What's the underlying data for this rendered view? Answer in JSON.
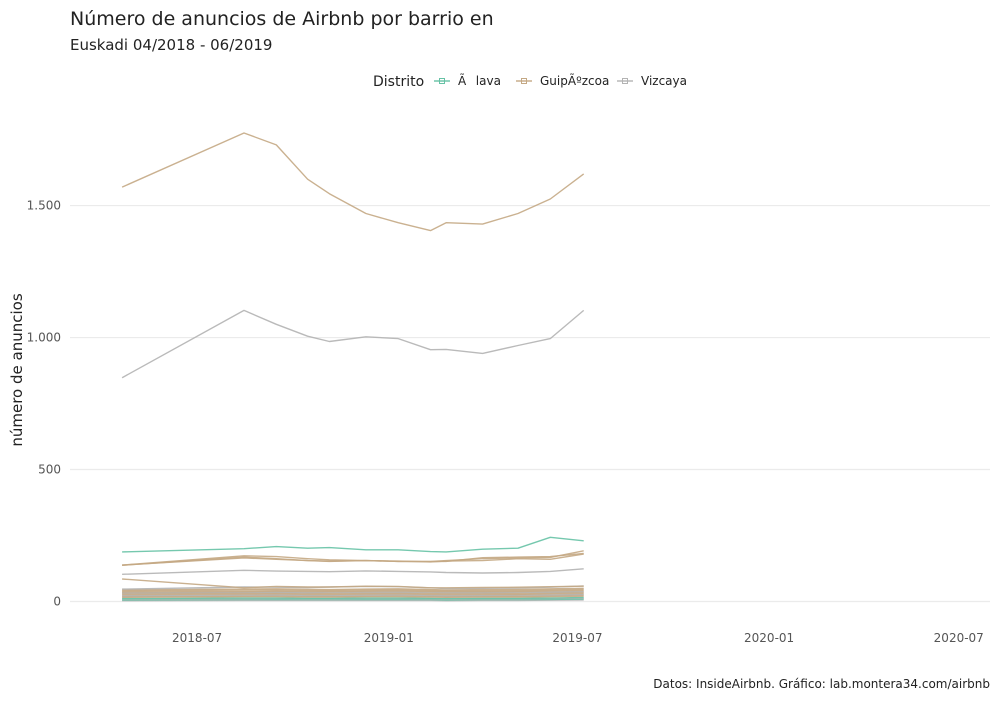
{
  "title": "Número de anuncios de Airbnb por barrio en",
  "subtitle": "Euskadi 04/2018 - 06/2019",
  "caption": "Datos: InsideAirbnb. Gráfico: lab.montera34.com/airbnb",
  "colors": {
    "alava": "#66c2a5",
    "gipuzkoa": "#c4a884",
    "vizcaya": "#b3b3b3",
    "grid": "#ebebeb",
    "text": "#222222",
    "tick": "#555555"
  },
  "chart_data": {
    "type": "line",
    "title": "Número de anuncios de Airbnb por barrio en",
    "subtitle": "Euskadi 04/2018 - 06/2019",
    "xlabel": "",
    "ylabel": "número de anuncios",
    "legend": {
      "title": "Distrito",
      "position": "top",
      "entries": [
        "Ãlava",
        "GuipÃºzcoa",
        "Vizcaya"
      ]
    },
    "grid": true,
    "xlim": [
      "2018-03-01",
      "2020-07-31"
    ],
    "ylim": [
      -55,
      1900
    ],
    "x_ticks": [
      "2018-07",
      "2019-01",
      "2019-07",
      "2020-01",
      "2020-07"
    ],
    "y_ticks": [
      {
        "value": 0,
        "label": "0"
      },
      {
        "value": 500,
        "label": "500"
      },
      {
        "value": 1000,
        "label": "1.000"
      },
      {
        "value": 1500,
        "label": "1.500"
      }
    ],
    "x": [
      "2018-04-20",
      "2018-08-15",
      "2018-09-15",
      "2018-10-15",
      "2018-11-05",
      "2018-12-10",
      "2019-01-10",
      "2019-02-10",
      "2019-02-25",
      "2019-04-01",
      "2019-05-05",
      "2019-06-05",
      "2019-07-07"
    ],
    "series": [
      {
        "group": "gipuzkoa",
        "values": [
          1570,
          1775,
          1730,
          1600,
          1545,
          1470,
          1435,
          1405,
          1435,
          1430,
          1470,
          1525,
          1620
        ]
      },
      {
        "group": "vizcaya",
        "values": [
          848,
          1103,
          1050,
          1005,
          985,
          1003,
          996,
          954,
          955,
          940,
          970,
          996,
          1103
        ]
      },
      {
        "group": "alava",
        "values": [
          188,
          200,
          208,
          202,
          204,
          196,
          196,
          189,
          188,
          198,
          202,
          243,
          230
        ]
      },
      {
        "group": "gipuzkoa",
        "values": [
          137,
          168,
          162,
          155,
          153,
          155,
          152,
          152,
          155,
          162,
          165,
          167,
          192
        ]
      },
      {
        "group": "gipuzkoa",
        "values": [
          138,
          173,
          170,
          162,
          158,
          155,
          153,
          150,
          153,
          155,
          162,
          160,
          180
        ]
      },
      {
        "group": "gipuzkoa",
        "values": [
          138,
          165,
          160,
          155,
          152,
          155,
          152,
          151,
          152,
          166,
          168,
          170,
          182
        ]
      },
      {
        "group": "vizcaya",
        "values": [
          103,
          118,
          115,
          114,
          113,
          116,
          114,
          112,
          110,
          108,
          110,
          114,
          124
        ]
      },
      {
        "group": "gipuzkoa",
        "values": [
          85,
          52,
          57,
          55,
          55,
          58,
          57,
          52,
          52,
          53,
          54,
          56,
          58
        ]
      },
      {
        "group": "vizcaya",
        "values": [
          47,
          55,
          54,
          53,
          55,
          57,
          56,
          52,
          49,
          50,
          52,
          54,
          59
        ]
      },
      {
        "group": "gipuzkoa",
        "values": [
          44,
          47,
          48,
          46,
          45,
          47,
          48,
          45,
          44,
          45,
          46,
          48,
          50
        ]
      },
      {
        "group": "gipuzkoa",
        "values": [
          40,
          43,
          44,
          42,
          42,
          43,
          44,
          42,
          41,
          41,
          42,
          44,
          46
        ]
      },
      {
        "group": "gipuzkoa",
        "values": [
          36,
          38,
          39,
          38,
          38,
          39,
          40,
          38,
          37,
          37,
          38,
          40,
          42
        ]
      },
      {
        "group": "vizcaya",
        "values": [
          33,
          35,
          36,
          34,
          35,
          36,
          36,
          35,
          34,
          34,
          35,
          36,
          38
        ]
      },
      {
        "group": "gipuzkoa",
        "values": [
          30,
          32,
          33,
          31,
          31,
          32,
          33,
          31,
          30,
          31,
          31,
          33,
          35
        ]
      },
      {
        "group": "gipuzkoa",
        "values": [
          26,
          28,
          29,
          27,
          27,
          28,
          29,
          27,
          26,
          27,
          27,
          29,
          31
        ]
      },
      {
        "group": "vizcaya",
        "values": [
          22,
          24,
          25,
          23,
          23,
          24,
          25,
          23,
          22,
          23,
          24,
          25,
          27
        ]
      },
      {
        "group": "gipuzkoa",
        "values": [
          19,
          21,
          22,
          20,
          20,
          21,
          22,
          20,
          19,
          20,
          20,
          22,
          24
        ]
      },
      {
        "group": "gipuzkoa",
        "values": [
          16,
          18,
          18,
          17,
          17,
          18,
          18,
          17,
          16,
          17,
          17,
          18,
          20
        ]
      },
      {
        "group": "alava",
        "values": [
          11,
          13,
          13,
          12,
          12,
          13,
          13,
          12,
          11,
          12,
          12,
          13,
          15
        ]
      },
      {
        "group": "vizcaya",
        "values": [
          9,
          10,
          11,
          10,
          10,
          11,
          11,
          10,
          9,
          10,
          10,
          11,
          12
        ]
      },
      {
        "group": "alava",
        "values": [
          6,
          7,
          7,
          7,
          7,
          7,
          7,
          7,
          6,
          7,
          7,
          8,
          9
        ]
      },
      {
        "group": "vizcaya",
        "values": [
          3,
          4,
          4,
          4,
          4,
          4,
          4,
          4,
          3,
          4,
          4,
          5,
          6
        ]
      }
    ]
  }
}
